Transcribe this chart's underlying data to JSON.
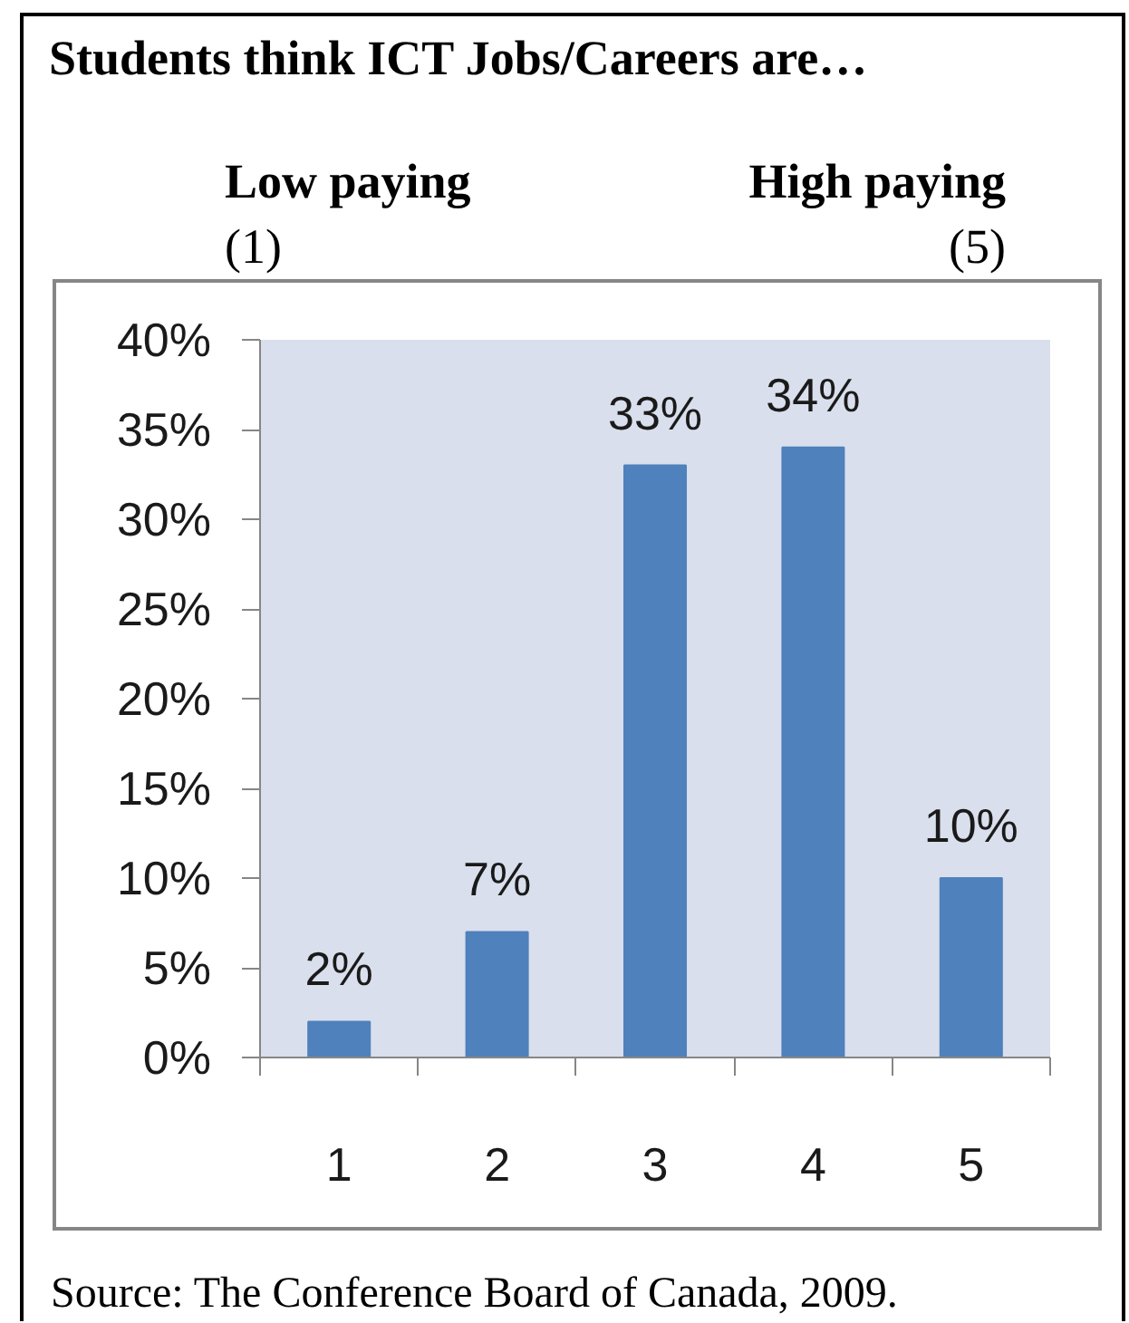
{
  "chart_data": {
    "type": "bar",
    "title": "Students think ICT Jobs/Careers are…",
    "annotations": [
      "Low paying",
      "High paying",
      "(1)",
      "(5)",
      "Source: The Conference Board of Canada, 2009."
    ],
    "categories": [
      "1",
      "2",
      "3",
      "4",
      "5"
    ],
    "values": [
      2,
      7,
      33,
      34,
      10
    ],
    "value_labels": [
      "2%",
      "7%",
      "33%",
      "34%",
      "10%"
    ],
    "color": "#4f81bd",
    "ylim": [
      0,
      40
    ],
    "yticks": [
      {
        "value": 0,
        "label": "0%"
      },
      {
        "value": 5,
        "label": "5%"
      },
      {
        "value": 10,
        "label": "10%"
      },
      {
        "value": 15,
        "label": "15%"
      },
      {
        "value": 20,
        "label": "20%"
      },
      {
        "value": 25,
        "label": "25%"
      },
      {
        "value": 30,
        "label": "30%"
      },
      {
        "value": 35,
        "label": "35%"
      },
      {
        "value": 40,
        "label": "40%"
      }
    ]
  }
}
